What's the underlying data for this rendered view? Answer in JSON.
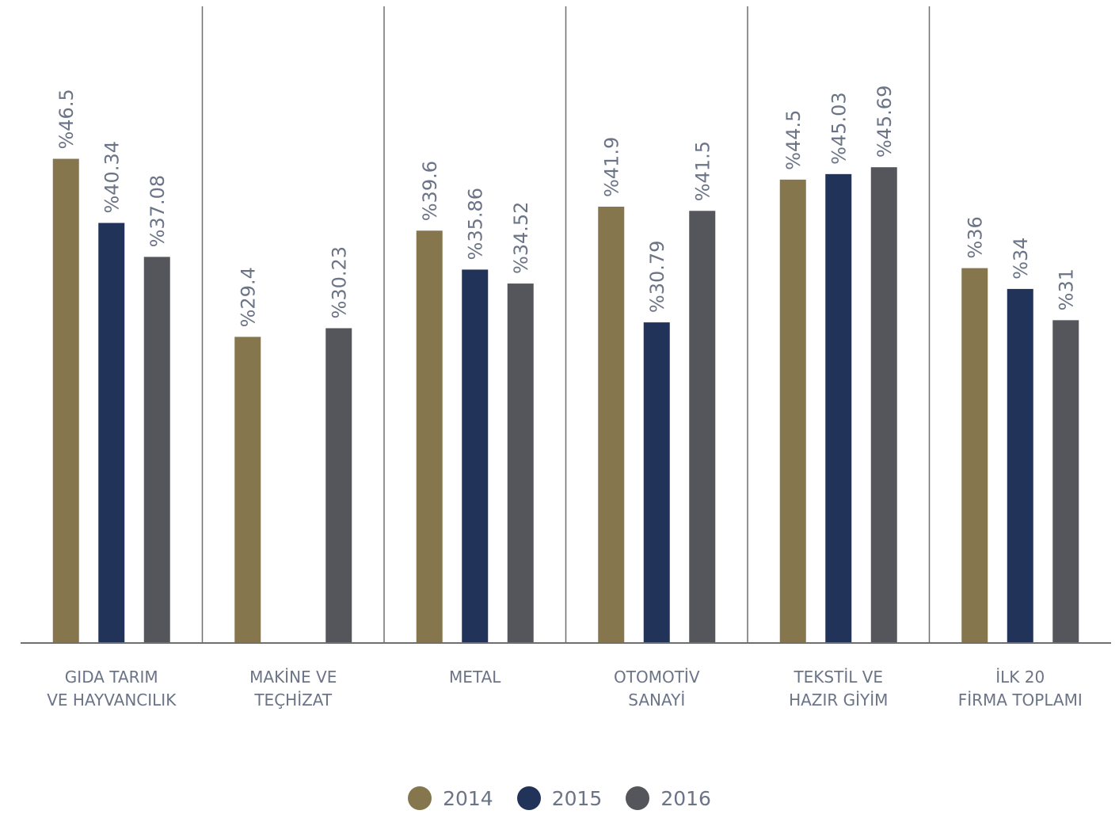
{
  "chart_data": {
    "type": "bar",
    "categories": [
      [
        "GIDA TARIM",
        "VE HAYVANCILIK"
      ],
      [
        "MAKİNE VE",
        "TEÇHİZAT"
      ],
      [
        "METAL"
      ],
      [
        "OTOMOTİV",
        "SANAYİ"
      ],
      [
        "TEKSTİL VE",
        "HAZIR GİYİM"
      ],
      [
        "İLK 20",
        "FİRMA TOPLAMI"
      ]
    ],
    "series": [
      {
        "name": "2014",
        "color": "#85764e",
        "values": [
          46.5,
          29.4,
          39.6,
          41.9,
          44.5,
          36
        ]
      },
      {
        "name": "2015",
        "color": "#22335a",
        "values": [
          40.34,
          null,
          35.86,
          30.79,
          45.03,
          34
        ]
      },
      {
        "name": "2016",
        "color": "#55565b",
        "values": [
          37.08,
          30.23,
          34.52,
          41.5,
          45.69,
          31
        ]
      }
    ],
    "value_labels": [
      [
        "%46.5",
        "%40.34",
        "%37.08"
      ],
      [
        "%29.4",
        "",
        "%30.23"
      ],
      [
        "%39.6",
        "%35.86",
        "%34.52"
      ],
      [
        "%41.9",
        "%30.79",
        "%41.5"
      ],
      [
        "%44.5",
        "%45.03",
        "%45.69"
      ],
      [
        "%36",
        "%34",
        "%31"
      ]
    ],
    "ylim": [
      0,
      60
    ],
    "grid": false,
    "legend_position": "bottom"
  },
  "legend": [
    {
      "label": "2014",
      "color": "#85764e"
    },
    {
      "label": "2015",
      "color": "#22335a"
    },
    {
      "label": "2016",
      "color": "#55565b"
    }
  ]
}
